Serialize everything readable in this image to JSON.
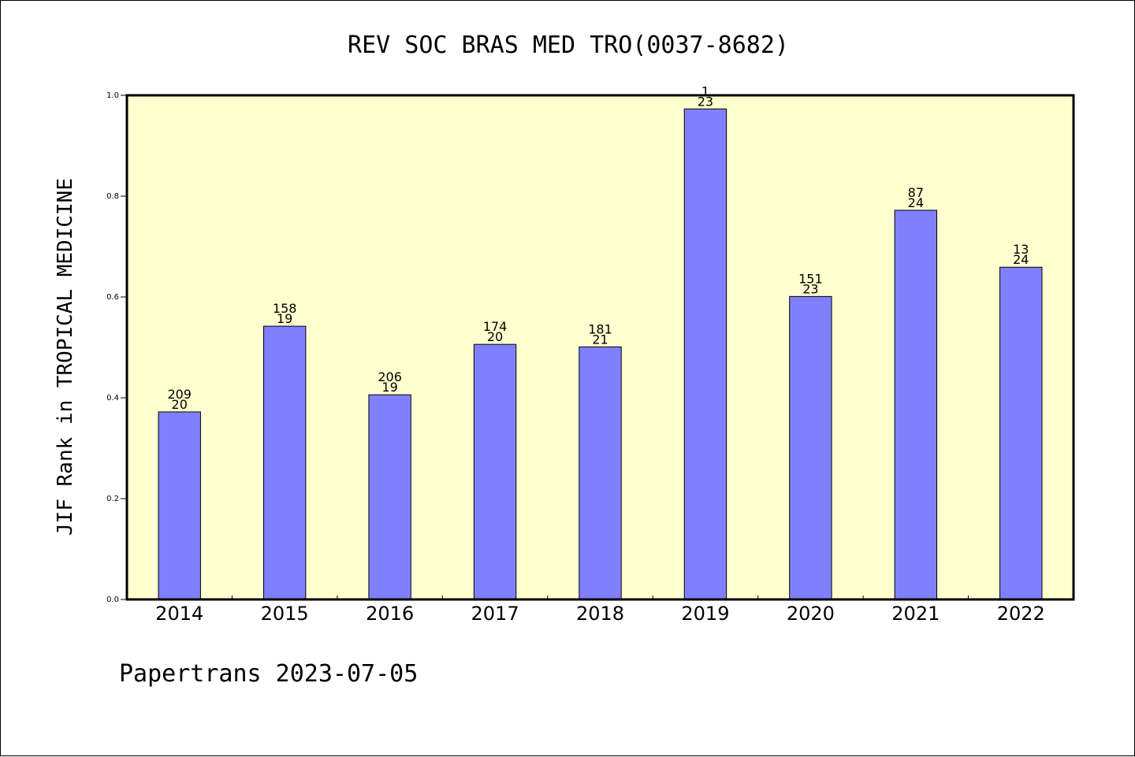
{
  "chart_data": {
    "type": "bar",
    "title": "REV SOC BRAS MED TRO(0037-8682)",
    "xlabel": "",
    "ylabel": "JIF Rank in TROPICAL MEDICINE",
    "ylim": [
      0,
      1.0
    ],
    "yticks": [
      "0.0",
      "0.2",
      "0.4",
      "0.6",
      "0.8",
      "1.0"
    ],
    "grid": false,
    "categories": [
      "2014",
      "2015",
      "2016",
      "2017",
      "2018",
      "2019",
      "2020",
      "2021",
      "2022"
    ],
    "values": [
      0.372,
      0.542,
      0.406,
      0.506,
      0.501,
      0.973,
      0.601,
      0.772,
      0.659
    ],
    "labels_top": [
      "209",
      "158",
      "206",
      "174",
      "181",
      "1",
      "151",
      "87",
      "13"
    ],
    "labels_bottom": [
      "20",
      "19",
      "19",
      "20",
      "21",
      "23",
      "23",
      "24",
      "24"
    ],
    "colors": {
      "bar": "#8080ff",
      "plot_background": "#ffffd0",
      "axes": "#000000"
    }
  },
  "footer": {
    "text": "Papertrans 2023-07-05"
  }
}
